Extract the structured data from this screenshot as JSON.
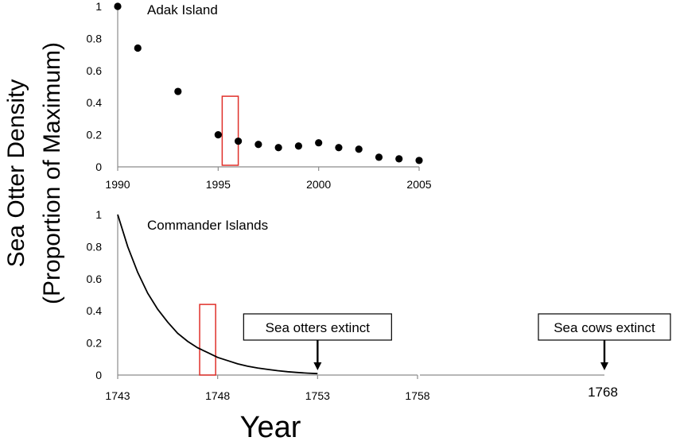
{
  "figure": {
    "ylabel_line1": "Sea Otter Density",
    "ylabel_line2": "(Proportion of Maximum)",
    "xlabel": "Year"
  },
  "chart_data": [
    {
      "type": "scatter",
      "title": "Adak Island",
      "xlabel": "",
      "ylabel": "Sea Otter Density (Proportion of Maximum)",
      "xlim": [
        1990,
        2005
      ],
      "ylim": [
        0,
        1
      ],
      "x_ticks": [
        "1990",
        "1995",
        "2000",
        "2005"
      ],
      "y_ticks": [
        "0",
        "0.2",
        "0.4",
        "0.6",
        "0.8",
        "1"
      ],
      "x": [
        1990,
        1991,
        1993,
        1995,
        1996,
        1997,
        1998,
        1999,
        2000,
        2001,
        2002,
        2003,
        2004,
        2005
      ],
      "y": [
        1.0,
        0.74,
        0.47,
        0.2,
        0.16,
        0.14,
        0.12,
        0.13,
        0.15,
        0.12,
        0.11,
        0.06,
        0.05,
        0.04
      ],
      "highlight": {
        "x_range": [
          1995.2,
          1996.0
        ],
        "y_range": [
          0,
          0.44
        ],
        "color": "#e0302a"
      },
      "grid": false
    },
    {
      "type": "line",
      "title": "Commander Islands",
      "xlabel": "Year",
      "ylabel": "Sea Otter Density (Proportion of Maximum)",
      "xlim": [
        1743,
        1768
      ],
      "ylim": [
        0,
        1
      ],
      "x_ticks": [
        "1743",
        "1748",
        "1753",
        "1758"
      ],
      "extra_x_tick": "1768",
      "y_ticks": [
        "0",
        "0.2",
        "0.4",
        "0.6",
        "0.8",
        "1"
      ],
      "x": [
        1743,
        1743.5,
        1744,
        1744.5,
        1745,
        1745.5,
        1746,
        1746.5,
        1747,
        1747.5,
        1748,
        1748.5,
        1749,
        1749.5,
        1750,
        1750.5,
        1751,
        1751.5,
        1752,
        1752.5,
        1753
      ],
      "y": [
        1.0,
        0.8,
        0.64,
        0.51,
        0.41,
        0.33,
        0.26,
        0.21,
        0.17,
        0.14,
        0.11,
        0.09,
        0.07,
        0.055,
        0.044,
        0.035,
        0.027,
        0.021,
        0.016,
        0.012,
        0.009
      ],
      "highlight": {
        "x_range": [
          1747.1,
          1747.9
        ],
        "y_range": [
          0,
          0.44
        ],
        "color": "#e0302a"
      },
      "annotations": [
        {
          "text": "Sea otters extinct",
          "x": 1753
        },
        {
          "text": "Sea cows extinct",
          "x": 1768
        }
      ],
      "grid": false
    }
  ]
}
